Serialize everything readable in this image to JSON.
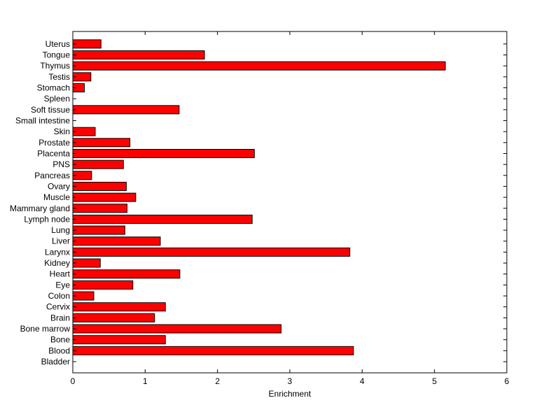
{
  "chart_data": {
    "type": "bar",
    "orientation": "horizontal",
    "categories": [
      "Bladder",
      "Blood",
      "Bone",
      "Bone marrow",
      "Brain",
      "Cervix",
      "Colon",
      "Eye",
      "Heart",
      "Kidney",
      "Larynx",
      "Liver",
      "Lung",
      "Lymph node",
      "Mammary gland",
      "Muscle",
      "Ovary",
      "Pancreas",
      "PNS",
      "Placenta",
      "Prostate",
      "Skin",
      "Small intestine",
      "Soft tissue",
      "Spleen",
      "Stomach",
      "Testis",
      "Thymus",
      "Tongue",
      "Uterus"
    ],
    "values": [
      0,
      3.88,
      1.28,
      2.88,
      1.13,
      1.28,
      0.29,
      0.83,
      1.48,
      0.38,
      3.83,
      1.21,
      0.72,
      2.48,
      0.75,
      0.87,
      0.74,
      0.26,
      0.7,
      2.51,
      0.79,
      0.31,
      0,
      1.47,
      0,
      0.16,
      0.25,
      5.15,
      1.82,
      0.39
    ],
    "xlabel": "Enrichment",
    "ylabel": "",
    "title": "",
    "xlim": [
      0,
      6
    ],
    "xticks": [
      "0",
      "1",
      "2",
      "3",
      "4",
      "5",
      "6"
    ],
    "bar_color": "#ff0000",
    "bar_edge_color": "#000000",
    "grid": false
  }
}
